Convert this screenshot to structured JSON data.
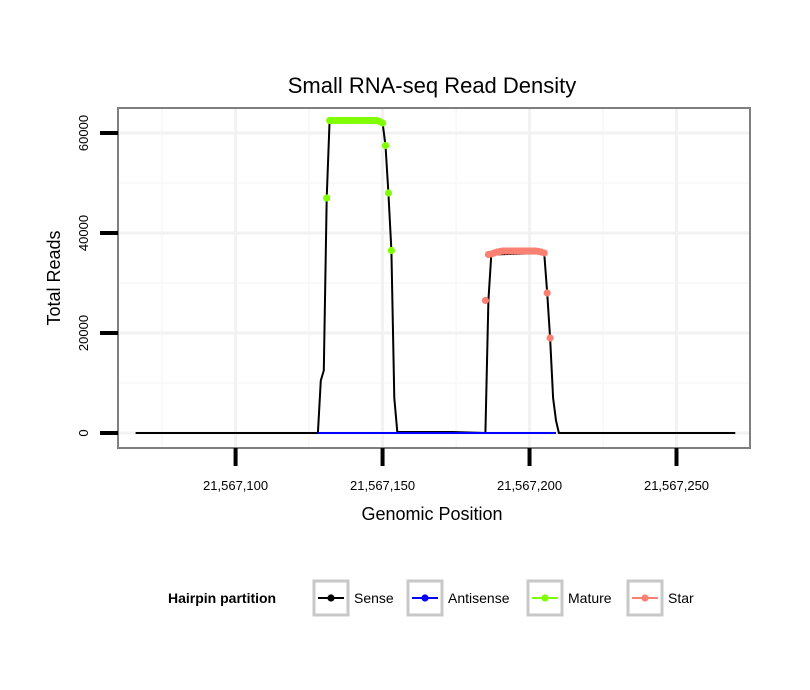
{
  "chart_data": {
    "type": "line",
    "title": "Small RNA-seq Read Density",
    "xlabel": "Genomic Position",
    "ylabel": "Total Reads",
    "xlim": [
      21567060,
      21567275
    ],
    "ylim": [
      -3000,
      65000
    ],
    "x_ticks": [
      21567100,
      21567150,
      21567200,
      21567250
    ],
    "x_tick_labels": [
      "21,567,100",
      "21,567,150",
      "21,567,200",
      "21,567,250"
    ],
    "y_ticks": [
      0,
      20000,
      40000,
      60000
    ],
    "y_tick_labels": [
      "0",
      "20000",
      "40000",
      "60000"
    ],
    "grid": true,
    "legend": {
      "title": "Hairpin partition",
      "position": "bottom",
      "entries": [
        "Sense",
        "Antisense",
        "Mature",
        "Star"
      ]
    },
    "series": [
      {
        "name": "Sense",
        "color": "#000000",
        "x": [
          21567066,
          21567128,
          21567129,
          21567130,
          21567131,
          21567132,
          21567150,
          21567151,
          21567152,
          21567153,
          21567154,
          21567155,
          21567174,
          21567185,
          21567186,
          21567187,
          21567205,
          21567206,
          21567207,
          21567208,
          21567209,
          21567210,
          21567270
        ],
        "values": [
          0,
          0,
          10500,
          12500,
          47000,
          62500,
          62000,
          57500,
          48000,
          36500,
          7000,
          200,
          200,
          0,
          26500,
          35700,
          36000,
          28000,
          19000,
          7000,
          2500,
          0,
          0
        ]
      },
      {
        "name": "Antisense",
        "color": "#0000ff",
        "x": [
          21567128,
          21567209
        ],
        "values": [
          0,
          0
        ]
      },
      {
        "name": "Mature",
        "color": "#7fff00",
        "x": [
          21567131,
          21567132,
          21567133,
          21567134,
          21567135,
          21567136,
          21567137,
          21567138,
          21567139,
          21567140,
          21567141,
          21567142,
          21567143,
          21567144,
          21567145,
          21567146,
          21567147,
          21567148,
          21567149,
          21567150,
          21567151,
          21567152,
          21567153
        ],
        "values": [
          47000,
          62500,
          62500,
          62500,
          62500,
          62500,
          62500,
          62500,
          62500,
          62500,
          62500,
          62500,
          62500,
          62500,
          62500,
          62500,
          62500,
          62500,
          62300,
          62000,
          57500,
          48000,
          36500
        ]
      },
      {
        "name": "Star",
        "color": "#fa8072",
        "x": [
          21567185,
          21567186,
          21567187,
          21567188,
          21567189,
          21567190,
          21567191,
          21567192,
          21567193,
          21567194,
          21567195,
          21567196,
          21567197,
          21567198,
          21567199,
          21567200,
          21567201,
          21567202,
          21567203,
          21567204,
          21567205,
          21567206,
          21567207
        ],
        "values": [
          26500,
          35700,
          35800,
          36000,
          36200,
          36300,
          36400,
          36400,
          36400,
          36400,
          36400,
          36400,
          36400,
          36400,
          36400,
          36400,
          36400,
          36400,
          36300,
          36200,
          36000,
          28000,
          19000
        ]
      }
    ]
  }
}
